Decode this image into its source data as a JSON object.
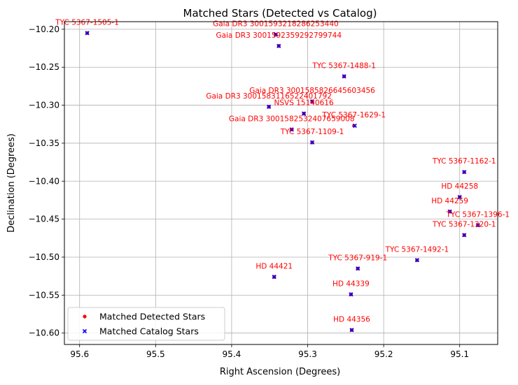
{
  "chart_data": {
    "type": "scatter",
    "title": "Matched Stars (Detected vs Catalog)",
    "xlabel": "Right Ascension (Degrees)",
    "ylabel": "Declination (Degrees)",
    "xlim": [
      95.62,
      95.05
    ],
    "ylim": [
      -10.615,
      -10.19
    ],
    "x_inverted": true,
    "grid": true,
    "legend_position": "lower-left",
    "x_ticks": [
      95.6,
      95.5,
      95.4,
      95.3,
      95.2,
      95.1
    ],
    "x_tick_labels": [
      "95.6",
      "95.5",
      "95.4",
      "95.3",
      "95.2",
      "95.1"
    ],
    "y_ticks": [
      -10.2,
      -10.25,
      -10.3,
      -10.35,
      -10.4,
      -10.45,
      -10.5,
      -10.55,
      -10.6
    ],
    "y_tick_labels": [
      "−10.20",
      "−10.25",
      "−10.30",
      "−10.35",
      "−10.40",
      "−10.45",
      "−10.50",
      "−10.55",
      "−10.60"
    ],
    "colors": {
      "detected": "#ff0000",
      "catalog": "#0000ff",
      "annotation": "#ff0000",
      "grid": "#b0b0b0"
    },
    "series": [
      {
        "name": "Matched Detected Stars",
        "marker": "circle",
        "points": [
          {
            "x": 95.59,
            "y": -10.205
          },
          {
            "x": 95.342,
            "y": -10.207
          },
          {
            "x": 95.338,
            "y": -10.222
          },
          {
            "x": 95.252,
            "y": -10.262
          },
          {
            "x": 95.294,
            "y": -10.295
          },
          {
            "x": 95.351,
            "y": -10.302
          },
          {
            "x": 95.305,
            "y": -10.311
          },
          {
            "x": 95.239,
            "y": -10.327
          },
          {
            "x": 95.321,
            "y": -10.332
          },
          {
            "x": 95.294,
            "y": -10.349
          },
          {
            "x": 95.094,
            "y": -10.388
          },
          {
            "x": 95.1,
            "y": -10.421
          },
          {
            "x": 95.113,
            "y": -10.44
          },
          {
            "x": 95.076,
            "y": -10.458
          },
          {
            "x": 95.094,
            "y": -10.471
          },
          {
            "x": 95.156,
            "y": -10.504
          },
          {
            "x": 95.234,
            "y": -10.515
          },
          {
            "x": 95.344,
            "y": -10.526
          },
          {
            "x": 95.243,
            "y": -10.549
          },
          {
            "x": 95.242,
            "y": -10.596
          }
        ]
      },
      {
        "name": "Matched Catalog Stars",
        "marker": "x",
        "points": [
          {
            "x": 95.59,
            "y": -10.205
          },
          {
            "x": 95.342,
            "y": -10.207
          },
          {
            "x": 95.338,
            "y": -10.222
          },
          {
            "x": 95.252,
            "y": -10.262
          },
          {
            "x": 95.294,
            "y": -10.295
          },
          {
            "x": 95.351,
            "y": -10.302
          },
          {
            "x": 95.305,
            "y": -10.311
          },
          {
            "x": 95.238,
            "y": -10.327
          },
          {
            "x": 95.321,
            "y": -10.332
          },
          {
            "x": 95.294,
            "y": -10.349
          },
          {
            "x": 95.094,
            "y": -10.388
          },
          {
            "x": 95.1,
            "y": -10.421
          },
          {
            "x": 95.113,
            "y": -10.44
          },
          {
            "x": 95.076,
            "y": -10.458
          },
          {
            "x": 95.094,
            "y": -10.471
          },
          {
            "x": 95.156,
            "y": -10.504
          },
          {
            "x": 95.234,
            "y": -10.515
          },
          {
            "x": 95.344,
            "y": -10.526
          },
          {
            "x": 95.243,
            "y": -10.549
          },
          {
            "x": 95.242,
            "y": -10.596
          }
        ]
      }
    ],
    "annotations": [
      {
        "text": "TYC 5367-1505-1",
        "x": 95.59,
        "y": -10.205
      },
      {
        "text": "Gaia DR3 3001593218286253440",
        "x": 95.342,
        "y": -10.207
      },
      {
        "text": "Gaia DR3 3001592359292799744",
        "x": 95.338,
        "y": -10.222
      },
      {
        "text": "TYC 5367-1488-1",
        "x": 95.252,
        "y": -10.262
      },
      {
        "text": "Gaia DR3 3001585826645603456",
        "x": 95.294,
        "y": -10.295
      },
      {
        "text": "Gaia DR3 3001583116522401792",
        "x": 95.351,
        "y": -10.302
      },
      {
        "text": "NSVS  15140616",
        "x": 95.305,
        "y": -10.311
      },
      {
        "text": "TYC 5367-1629-1",
        "x": 95.239,
        "y": -10.327
      },
      {
        "text": "Gaia DR3 3001582532407659008",
        "x": 95.321,
        "y": -10.332
      },
      {
        "text": "TYC 5367-1109-1",
        "x": 95.294,
        "y": -10.349
      },
      {
        "text": "TYC 5367-1162-1",
        "x": 95.094,
        "y": -10.388
      },
      {
        "text": "HD  44258",
        "x": 95.1,
        "y": -10.421
      },
      {
        "text": "HD  44259",
        "x": 95.113,
        "y": -10.44
      },
      {
        "text": "TYC 5367-1396-1",
        "x": 95.076,
        "y": -10.458
      },
      {
        "text": "TYC 5367-1320-1",
        "x": 95.094,
        "y": -10.471
      },
      {
        "text": "TYC 5367-1492-1",
        "x": 95.156,
        "y": -10.504
      },
      {
        "text": "TYC 5367-919-1",
        "x": 95.234,
        "y": -10.515
      },
      {
        "text": "HD  44421",
        "x": 95.344,
        "y": -10.526
      },
      {
        "text": "HD  44339",
        "x": 95.243,
        "y": -10.549
      },
      {
        "text": "HD  44356",
        "x": 95.242,
        "y": -10.596
      }
    ]
  }
}
